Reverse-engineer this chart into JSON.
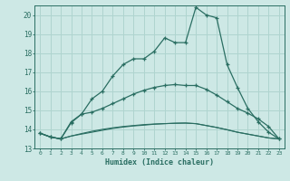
{
  "xlabel": "Humidex (Indice chaleur)",
  "x": [
    0,
    1,
    2,
    3,
    4,
    5,
    6,
    7,
    8,
    9,
    10,
    11,
    12,
    13,
    14,
    15,
    16,
    17,
    18,
    19,
    20,
    21,
    22,
    23
  ],
  "line1": [
    13.8,
    13.6,
    13.5,
    14.4,
    14.8,
    15.6,
    16.0,
    16.8,
    17.4,
    17.7,
    17.7,
    18.1,
    18.8,
    18.55,
    18.55,
    20.4,
    20.0,
    19.85,
    17.4,
    16.2,
    15.1,
    14.4,
    13.85,
    13.5
  ],
  "line2": [
    13.8,
    13.6,
    13.5,
    14.35,
    14.8,
    14.9,
    15.1,
    15.35,
    15.6,
    15.85,
    16.05,
    16.2,
    16.3,
    16.35,
    16.3,
    16.3,
    16.1,
    15.8,
    15.45,
    15.1,
    14.85,
    14.55,
    14.15,
    13.5
  ],
  "line3": [
    13.8,
    13.6,
    13.5,
    13.65,
    13.75,
    13.85,
    13.95,
    14.05,
    14.12,
    14.18,
    14.22,
    14.27,
    14.3,
    14.32,
    14.33,
    14.3,
    14.2,
    14.1,
    13.98,
    13.85,
    13.75,
    13.65,
    13.55,
    13.5
  ],
  "line4": [
    13.8,
    13.6,
    13.5,
    13.65,
    13.78,
    13.9,
    14.0,
    14.08,
    14.15,
    14.2,
    14.25,
    14.28,
    14.3,
    14.32,
    14.33,
    14.3,
    14.2,
    14.1,
    13.98,
    13.85,
    13.75,
    13.65,
    13.55,
    13.5
  ],
  "bg_color": "#cde8e5",
  "line_color": "#2a6e62",
  "grid_color": "#afd4cf",
  "ylim": [
    13,
    20.5
  ],
  "xlim": [
    -0.5,
    23.5
  ],
  "yticks": [
    13,
    14,
    15,
    16,
    17,
    18,
    19,
    20
  ]
}
